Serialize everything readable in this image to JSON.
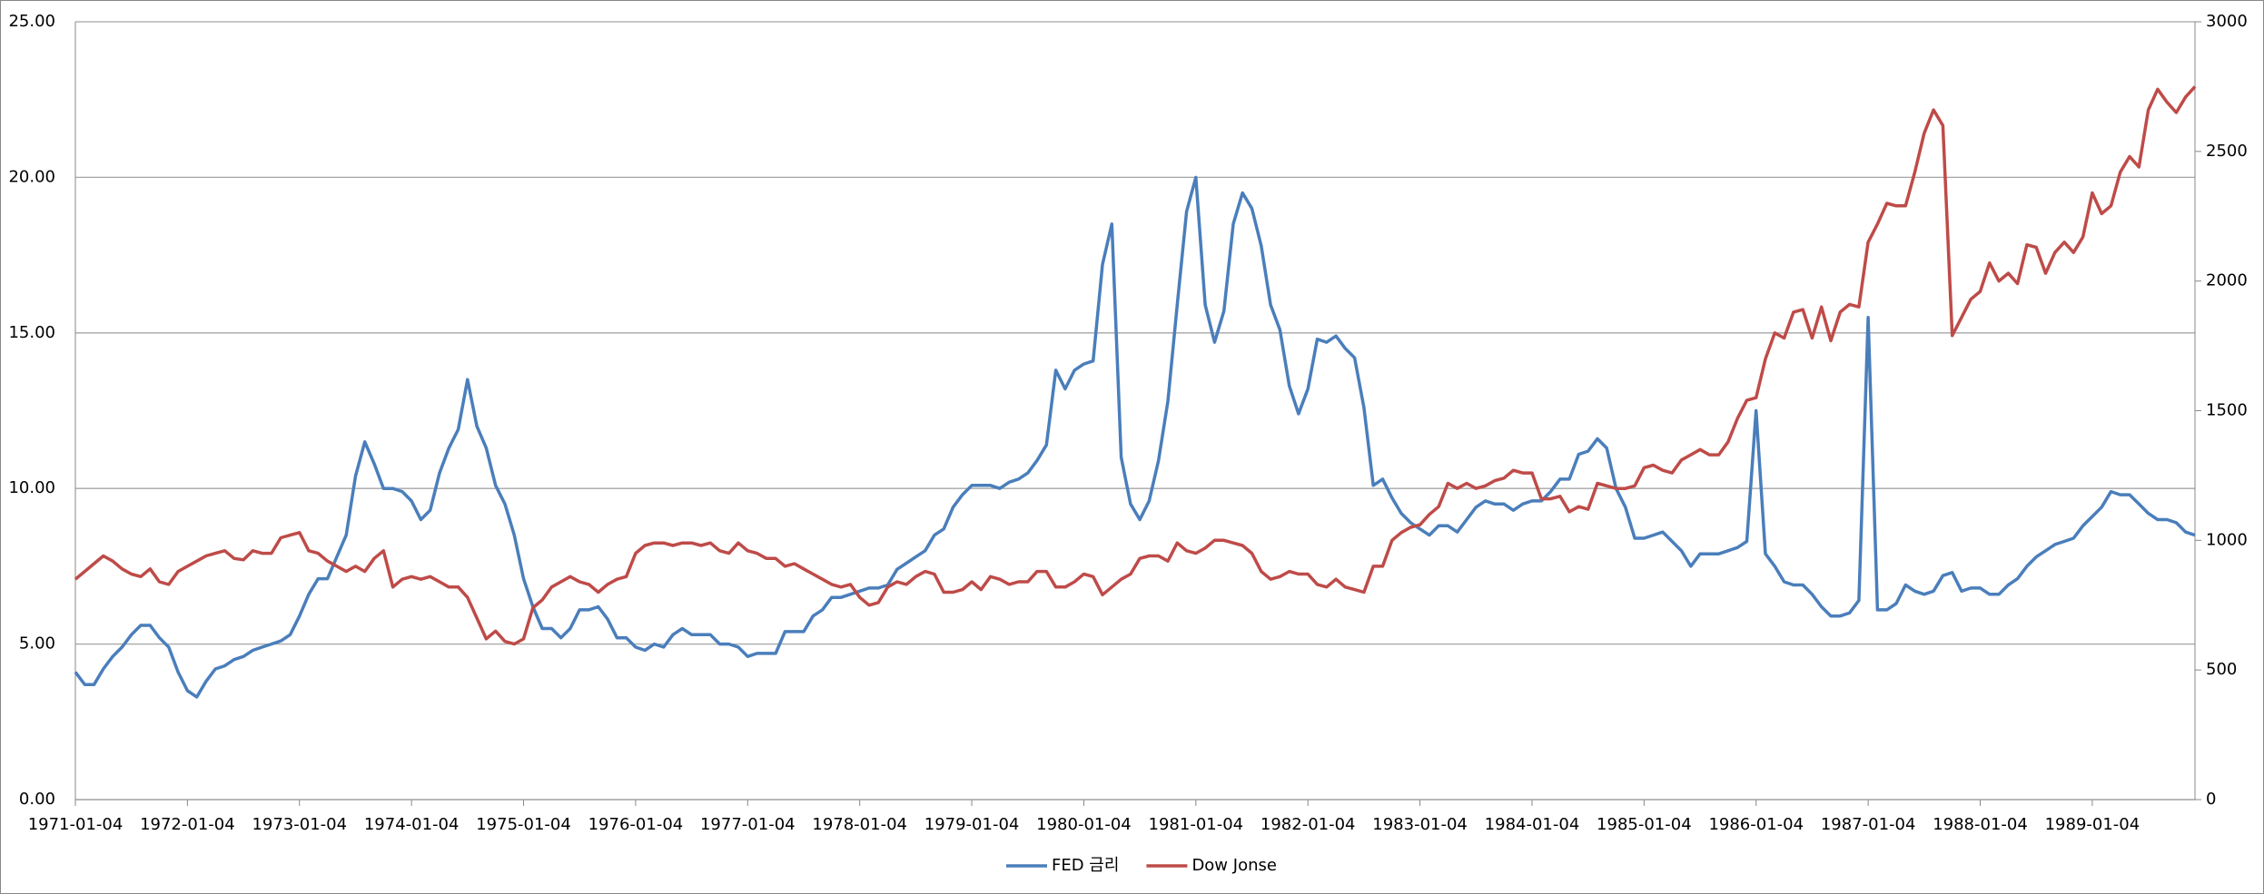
{
  "chart_data": {
    "type": "line",
    "categories": [
      "1971-01-04",
      null,
      null,
      null,
      null,
      null,
      null,
      null,
      null,
      null,
      null,
      null,
      "1972-01-04",
      null,
      null,
      null,
      null,
      null,
      null,
      null,
      null,
      null,
      null,
      null,
      "1973-01-04",
      null,
      null,
      null,
      null,
      null,
      null,
      null,
      null,
      null,
      null,
      null,
      "1974-01-04",
      null,
      null,
      null,
      null,
      null,
      null,
      null,
      null,
      null,
      null,
      null,
      "1975-01-04",
      null,
      null,
      null,
      null,
      null,
      null,
      null,
      null,
      null,
      null,
      null,
      "1976-01-04",
      null,
      null,
      null,
      null,
      null,
      null,
      null,
      null,
      null,
      null,
      null,
      "1977-01-04",
      null,
      null,
      null,
      null,
      null,
      null,
      null,
      null,
      null,
      null,
      null,
      "1978-01-04",
      null,
      null,
      null,
      null,
      null,
      null,
      null,
      null,
      null,
      null,
      null,
      "1979-01-04",
      null,
      null,
      null,
      null,
      null,
      null,
      null,
      null,
      null,
      null,
      null,
      "1980-01-04",
      null,
      null,
      null,
      null,
      null,
      null,
      null,
      null,
      null,
      null,
      null,
      "1981-01-04",
      null,
      null,
      null,
      null,
      null,
      null,
      null,
      null,
      null,
      null,
      null,
      "1982-01-04",
      null,
      null,
      null,
      null,
      null,
      null,
      null,
      null,
      null,
      null,
      null,
      "1983-01-04",
      null,
      null,
      null,
      null,
      null,
      null,
      null,
      null,
      null,
      null,
      null,
      "1984-01-04",
      null,
      null,
      null,
      null,
      null,
      null,
      null,
      null,
      null,
      null,
      null,
      "1985-01-04",
      null,
      null,
      null,
      null,
      null,
      null,
      null,
      null,
      null,
      null,
      null,
      "1986-01-04",
      null,
      null,
      null,
      null,
      null,
      null,
      null,
      null,
      null,
      null,
      null,
      "1987-01-04",
      null,
      null,
      null,
      null,
      null,
      null,
      null,
      null,
      null,
      null,
      null,
      "1988-01-04",
      null,
      null,
      null,
      null,
      null,
      null,
      null,
      null,
      null,
      null,
      null,
      "1989-01-04",
      null,
      null,
      null,
      null,
      null,
      null,
      null,
      null,
      null,
      null,
      null
    ],
    "series": [
      {
        "name": "FED 금리",
        "color": "#4a7ebb",
        "values": [
          4.1,
          3.7,
          3.7,
          4.2,
          4.6,
          4.9,
          5.3,
          5.6,
          5.6,
          5.2,
          4.9,
          4.1,
          3.5,
          3.3,
          3.8,
          4.2,
          4.3,
          4.5,
          4.6,
          4.8,
          4.9,
          5.0,
          5.1,
          5.3,
          5.9,
          6.6,
          7.1,
          7.1,
          7.8,
          8.5,
          10.4,
          11.5,
          10.8,
          10.0,
          10.0,
          9.9,
          9.6,
          9.0,
          9.3,
          10.5,
          11.3,
          11.9,
          13.5,
          12.0,
          11.3,
          10.1,
          9.5,
          8.5,
          7.1,
          6.2,
          5.5,
          5.5,
          5.2,
          5.5,
          6.1,
          6.1,
          6.2,
          5.8,
          5.2,
          5.2,
          4.9,
          4.8,
          5.0,
          4.9,
          5.3,
          5.5,
          5.3,
          5.3,
          5.3,
          5.0,
          5.0,
          4.9,
          4.6,
          4.7,
          4.7,
          4.7,
          5.4,
          5.4,
          5.4,
          5.9,
          6.1,
          6.5,
          6.5,
          6.6,
          6.7,
          6.8,
          6.8,
          6.9,
          7.4,
          7.6,
          7.8,
          8.0,
          8.5,
          8.7,
          9.4,
          9.8,
          10.1,
          10.1,
          10.1,
          10.0,
          10.2,
          10.3,
          10.5,
          10.9,
          11.4,
          13.8,
          13.2,
          13.8,
          14.0,
          14.1,
          17.2,
          18.5,
          11.0,
          9.5,
          9.0,
          9.6,
          10.9,
          12.8,
          15.9,
          18.9,
          20.0,
          15.9,
          14.7,
          15.7,
          18.5,
          19.5,
          19.0,
          17.8,
          15.9,
          15.1,
          13.3,
          12.4,
          13.2,
          14.8,
          14.7,
          14.9,
          14.5,
          14.2,
          12.6,
          10.1,
          10.3,
          9.7,
          9.2,
          8.9,
          8.7,
          8.5,
          8.8,
          8.8,
          8.6,
          9.0,
          9.4,
          9.6,
          9.5,
          9.5,
          9.3,
          9.5,
          9.6,
          9.6,
          9.9,
          10.3,
          10.3,
          11.1,
          11.2,
          11.6,
          11.3,
          10.0,
          9.4,
          8.4,
          8.4,
          8.5,
          8.6,
          8.3,
          8.0,
          7.5,
          7.9,
          7.9,
          7.9,
          8.0,
          8.1,
          8.3,
          12.5,
          7.9,
          7.5,
          7.0,
          6.9,
          6.9,
          6.6,
          6.2,
          5.9,
          5.9,
          6.0,
          6.4,
          15.5,
          6.1,
          6.1,
          6.3,
          6.9,
          6.7,
          6.6,
          6.7,
          7.2,
          7.3,
          6.7,
          6.8,
          6.8,
          6.6,
          6.6,
          6.9,
          7.1,
          7.5,
          7.8,
          8.0,
          8.2,
          8.3,
          8.4,
          8.8,
          9.1,
          9.4,
          9.9,
          9.8,
          9.8,
          9.5,
          9.2,
          9.0,
          9.0,
          8.9,
          8.6,
          8.5
        ]
      },
      {
        "name": "Dow Jonse",
        "color": "#be4b48",
        "axis": "y2",
        "values": [
          850,
          880,
          910,
          940,
          920,
          890,
          870,
          860,
          890,
          840,
          830,
          880,
          900,
          920,
          940,
          950,
          960,
          930,
          925,
          960,
          950,
          950,
          1010,
          1020,
          1030,
          960,
          950,
          920,
          900,
          880,
          900,
          880,
          930,
          960,
          820,
          850,
          860,
          850,
          860,
          840,
          820,
          820,
          780,
          700,
          620,
          650,
          610,
          600,
          620,
          740,
          770,
          820,
          840,
          860,
          840,
          830,
          800,
          830,
          850,
          860,
          950,
          980,
          990,
          990,
          980,
          990,
          990,
          980,
          990,
          960,
          950,
          990,
          960,
          950,
          930,
          930,
          900,
          910,
          890,
          870,
          850,
          830,
          820,
          830,
          780,
          750,
          760,
          820,
          840,
          830,
          860,
          880,
          870,
          800,
          800,
          810,
          840,
          810,
          860,
          850,
          830,
          840,
          840,
          880,
          880,
          820,
          820,
          840,
          870,
          860,
          790,
          820,
          850,
          870,
          930,
          940,
          940,
          920,
          990,
          960,
          950,
          970,
          1000,
          1000,
          990,
          980,
          950,
          880,
          850,
          860,
          880,
          870,
          870,
          830,
          820,
          850,
          820,
          810,
          800,
          900,
          900,
          1000,
          1030,
          1050,
          1060,
          1100,
          1130,
          1220,
          1200,
          1220,
          1200,
          1210,
          1230,
          1240,
          1270,
          1260,
          1260,
          1160,
          1160,
          1170,
          1110,
          1130,
          1120,
          1220,
          1210,
          1200,
          1200,
          1210,
          1280,
          1290,
          1270,
          1260,
          1310,
          1330,
          1350,
          1330,
          1330,
          1380,
          1470,
          1540,
          1550,
          1700,
          1800,
          1780,
          1880,
          1890,
          1780,
          1900,
          1770,
          1880,
          1910,
          1900,
          2150,
          2220,
          2300,
          2290,
          2290,
          2420,
          2570,
          2660,
          2600,
          1790,
          1860,
          1930,
          1960,
          2070,
          2000,
          2030,
          1990,
          2140,
          2130,
          2030,
          2110,
          2150,
          2110,
          2170,
          2340,
          2260,
          2290,
          2420,
          2480,
          2440,
          2660,
          2740,
          2690,
          2650,
          2710,
          2750
        ]
      }
    ],
    "ylim": [
      0,
      25
    ],
    "yticks": [
      {
        "value": 0,
        "label": "0.00"
      },
      {
        "value": 5,
        "label": "5.00"
      },
      {
        "value": 10,
        "label": "10.00"
      },
      {
        "value": 15,
        "label": "15.00"
      },
      {
        "value": 20,
        "label": "20.00"
      },
      {
        "value": 25,
        "label": "25.00"
      }
    ],
    "y2lim": [
      0,
      3000
    ],
    "y2ticks": [
      0,
      500,
      1000,
      1500,
      2000,
      2500,
      3000
    ],
    "grid": true,
    "legend": "bottom"
  }
}
